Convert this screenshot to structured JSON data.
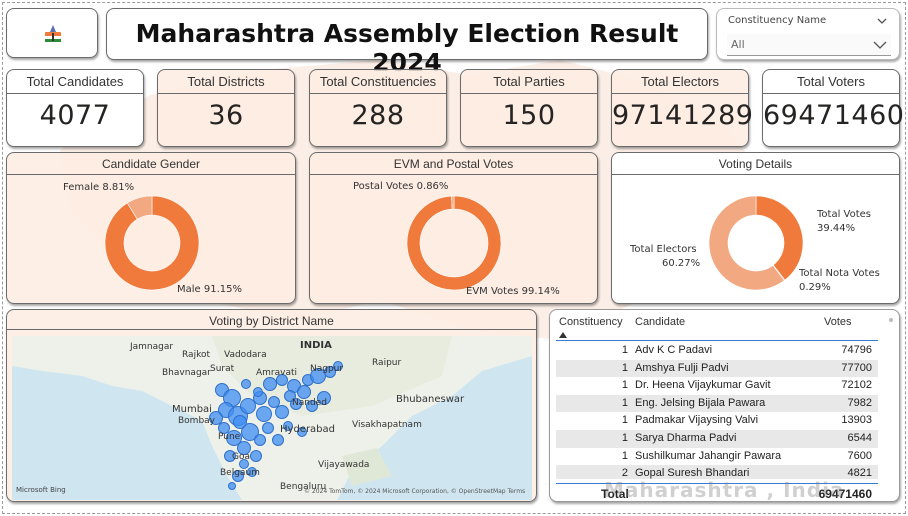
{
  "header": {
    "title": "Maharashtra Assembly Election Result 2024",
    "logo_icon": "election-commission-logo-icon"
  },
  "slicer": {
    "label": "Constituency Name",
    "value": "All"
  },
  "kpis": [
    {
      "label": "Total Candidates",
      "value": "4077"
    },
    {
      "label": "Total Districts",
      "value": "36"
    },
    {
      "label": "Total Constituencies",
      "value": "288"
    },
    {
      "label": "Total Parties",
      "value": "150"
    },
    {
      "label": "Total Electors",
      "value": "97141289"
    },
    {
      "label": "Total Voters",
      "value": "69471460"
    }
  ],
  "colors": {
    "accent": "#f07a3c",
    "accent_light": "#f2a880",
    "card_bg": "#fdece2",
    "map_bubble": "#3f8ef3"
  },
  "chart_data": [
    {
      "type": "pie",
      "title": "Candidate Gender",
      "categories": [
        "Male",
        "Female"
      ],
      "values": [
        91.15,
        8.81
      ],
      "labels": [
        "Male 91.15%",
        "Female 8.81%"
      ],
      "colors": [
        "#f07a3c",
        "#f2a880"
      ]
    },
    {
      "type": "pie",
      "title": "EVM and Postal Votes",
      "categories": [
        "EVM Votes",
        "Postal Votes"
      ],
      "values": [
        99.14,
        0.86
      ],
      "labels": [
        "EVM Votes 99.14%",
        "Postal Votes 0.86%"
      ],
      "colors": [
        "#f07a3c",
        "#f2a880"
      ]
    },
    {
      "type": "pie",
      "title": "Voting Details",
      "categories": [
        "Total Votes",
        "Total Nota Votes",
        "Total Electors"
      ],
      "values": [
        39.44,
        0.29,
        60.27
      ],
      "labels": [
        {
          "name": "Total Votes",
          "pct": "39.44%"
        },
        {
          "name": "Total Nota Votes",
          "pct": "0.29%"
        },
        {
          "name": "Total Electors",
          "pct": "60.27%"
        }
      ],
      "colors": [
        "#f07a3c",
        "#8a3a1a",
        "#f2a880"
      ]
    }
  ],
  "map": {
    "title": "Voting by District Name",
    "labels": [
      "INDIA",
      "Jamnagar",
      "Rajkot",
      "Vadodara",
      "Surat",
      "Bhavnagar",
      "Amravati",
      "Nagpur",
      "Raipur",
      "Mumbai",
      "Bombay",
      "Nanded",
      "Pune",
      "Hyderabad",
      "Bhubaneswar",
      "Visakhapatnam",
      "Vijayawada",
      "Belgaum",
      "Goa",
      "Bengaluru"
    ],
    "attribution": "Microsoft Bing",
    "copyright": "© 2024 TomTom, © 2024 Microsoft Corporation, © OpenStreetMap  Terms"
  },
  "table": {
    "headers": {
      "constituency": "Constituency",
      "candidate": "Candidate",
      "votes": "Votes"
    },
    "rows": [
      {
        "constituency": "1",
        "candidate": "Adv K C Padavi",
        "votes": "74796"
      },
      {
        "constituency": "1",
        "candidate": "Amshya Fulji Padvi",
        "votes": "77700"
      },
      {
        "constituency": "1",
        "candidate": "Dr. Heena Vijaykumar Gavit",
        "votes": "72102"
      },
      {
        "constituency": "1",
        "candidate": "Eng. Jelsing Bijala Pawara",
        "votes": "7982"
      },
      {
        "constituency": "1",
        "candidate": "Padmakar Vijaysing Valvi",
        "votes": "13903"
      },
      {
        "constituency": "1",
        "candidate": "Sarya Dharma Padvi",
        "votes": "6544"
      },
      {
        "constituency": "1",
        "candidate": "Sushilkumar Jahangir Pawara",
        "votes": "7600"
      },
      {
        "constituency": "2",
        "candidate": "Gopal Suresh Bhandari",
        "votes": "4821"
      }
    ],
    "total_label": "Total",
    "total_value": "69471460"
  },
  "watermark": "Maharashtra , India"
}
